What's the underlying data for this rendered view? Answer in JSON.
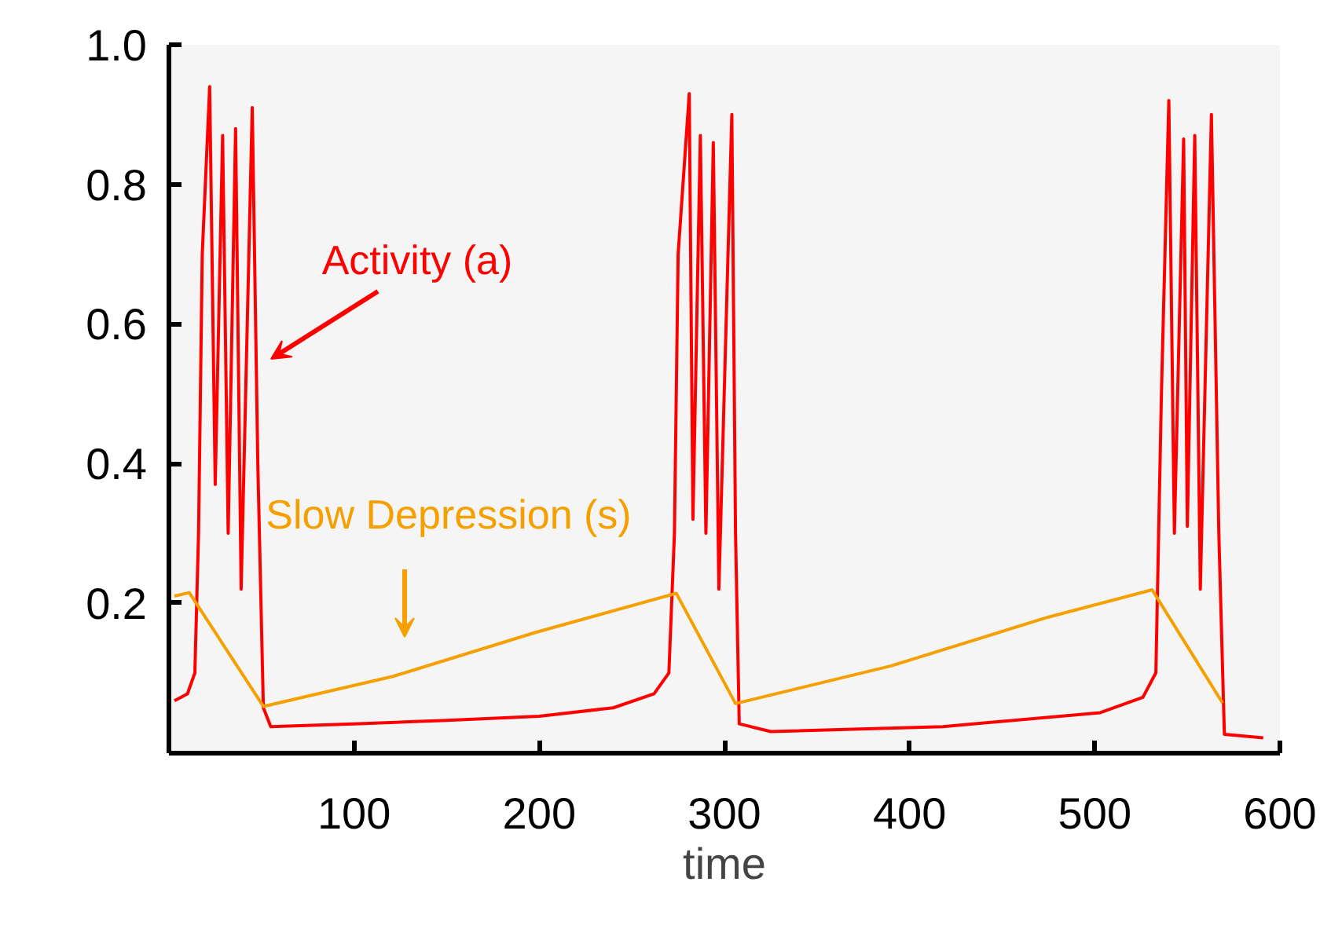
{
  "chart_data": {
    "type": "line",
    "xlabel": "time",
    "xlim": [
      0,
      600
    ],
    "xticks": [
      100,
      200,
      300,
      400,
      500,
      600
    ],
    "ylim": [
      -0.015,
      1.0
    ],
    "yticks": [
      0.2,
      0.4,
      0.6,
      0.8,
      {
        "value": 1.0,
        "label": "1.0"
      }
    ],
    "grid": false,
    "line_style": "solid",
    "marker": "none",
    "series": [
      {
        "color": "#ff0000",
        "x": [
          3,
          10,
          14,
          16,
          18,
          22,
          25,
          29,
          32,
          36,
          39,
          45,
          48,
          51,
          55,
          100,
          150,
          200,
          240,
          262,
          270,
          273,
          275,
          281,
          283,
          287,
          290,
          294,
          297,
          304,
          306,
          308,
          325,
          418,
          503,
          526,
          533,
          536,
          540,
          543,
          548,
          550,
          554,
          557,
          563,
          567,
          570,
          591
        ],
        "values": [
          0.06,
          0.07,
          0.1,
          0.3,
          0.7,
          0.94,
          0.37,
          0.87,
          0.3,
          0.88,
          0.22,
          0.91,
          0.4,
          0.05,
          0.023,
          0.027,
          0.032,
          0.038,
          0.05,
          0.07,
          0.1,
          0.3,
          0.7,
          0.93,
          0.32,
          0.87,
          0.3,
          0.86,
          0.22,
          0.9,
          0.3,
          0.027,
          0.016,
          0.023,
          0.043,
          0.065,
          0.1,
          0.5,
          0.92,
          0.3,
          0.865,
          0.31,
          0.87,
          0.22,
          0.9,
          0.3,
          0.012,
          0.007
        ]
      },
      {
        "color": "#f5a000",
        "x": [
          3,
          11,
          51,
          121,
          198,
          274,
          306,
          390,
          475,
          531,
          569
        ],
        "values": [
          0.21,
          0.215,
          0.052,
          0.095,
          0.158,
          0.214,
          0.056,
          0.11,
          0.18,
          0.219,
          0.057
        ]
      }
    ],
    "annotations": [
      "Activity (a)",
      "Slow Depression (s)"
    ]
  }
}
